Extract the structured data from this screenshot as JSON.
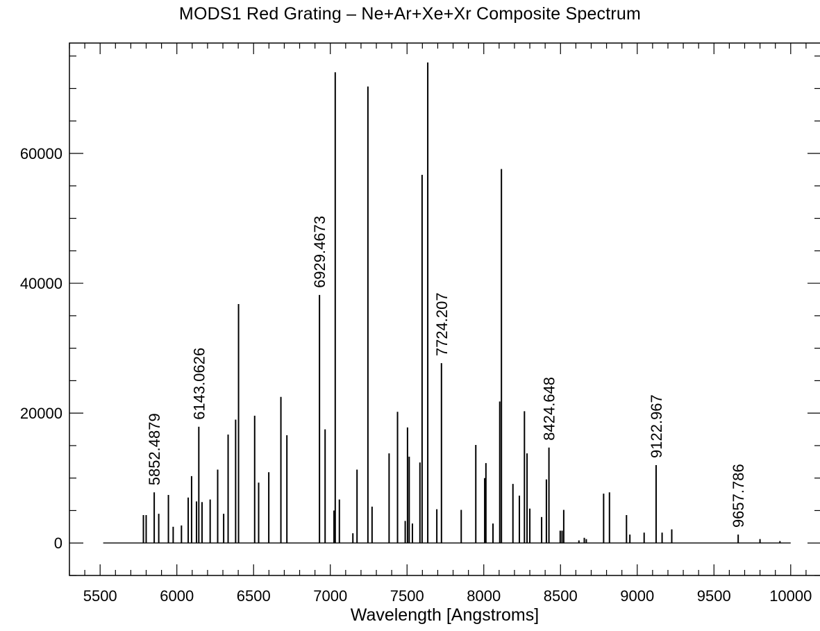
{
  "chart_data": {
    "type": "line",
    "title": "MODS1 Red Grating – Ne+Ar+Xe+Xr Composite Spectrum",
    "xlabel": "Wavelength [Angstroms]",
    "ylabel": "",
    "xlim": [
      5300,
      10200
    ],
    "ylim": [
      -5000,
      77000
    ],
    "grid": false,
    "x_ticks": [
      5500,
      6000,
      6500,
      7000,
      7500,
      8000,
      8500,
      9000,
      9500,
      10000
    ],
    "x_tick_labels": [
      "5500",
      "6000",
      "6500",
      "7000",
      "7500",
      "8000",
      "8500",
      "9000",
      "9500",
      "10000"
    ],
    "x_minor_step": 100,
    "y_ticks": [
      0,
      20000,
      40000,
      60000
    ],
    "y_tick_labels": [
      "0",
      "20000",
      "40000",
      "60000"
    ],
    "y_minor_step": 5000,
    "spectrum_range": [
      5520,
      10000
    ],
    "series": [
      {
        "x": [
          5782,
          5800,
          5852.4879,
          5882,
          5945,
          5976,
          6030,
          6074,
          6096,
          6128,
          6143.0626,
          6164,
          6217,
          6266,
          6305,
          6334,
          6383,
          6402,
          6507,
          6533,
          6599,
          6678,
          6717,
          6929.4673,
          6966,
          7024,
          7032,
          7059,
          7147,
          7174,
          7245,
          7272,
          7383,
          7438,
          7488,
          7503,
          7514,
          7535,
          7584,
          7598,
          7635,
          7694,
          7724.207,
          7853,
          7948,
          8006,
          8014,
          8060,
          8104,
          8115,
          8190,
          8232,
          8265,
          8282,
          8300,
          8377,
          8408,
          8424.648,
          8498,
          8510,
          8521,
          8620,
          8655,
          8668,
          8781,
          8819,
          8930,
          8952,
          9045,
          9122.967,
          9162,
          9225,
          9657.786,
          9800,
          9930
        ],
        "values": [
          4300,
          4300,
          7800,
          4500,
          7400,
          2500,
          2700,
          7000,
          10300,
          6400,
          17900,
          6300,
          6700,
          11300,
          4500,
          16700,
          19000,
          36800,
          19600,
          9300,
          10900,
          22500,
          16600,
          38200,
          17500,
          5000,
          72500,
          6700,
          1500,
          11300,
          70300,
          5600,
          13800,
          20200,
          3400,
          17800,
          13300,
          3000,
          12400,
          56700,
          74000,
          5200,
          27700,
          5100,
          15100,
          10000,
          12300,
          3000,
          21800,
          57600,
          9100,
          7300,
          20300,
          13800,
          5300,
          4000,
          9800,
          14700,
          1900,
          1900,
          5100,
          400,
          800,
          600,
          7600,
          7800,
          4300,
          1300,
          1600,
          12000,
          1600,
          2100,
          1300,
          600,
          300
        ]
      }
    ],
    "peak_labels": [
      {
        "text": "5852.4879",
        "x": 5852.4879
      },
      {
        "text": "6143.0626",
        "x": 6143.0626
      },
      {
        "text": "6929.4673",
        "x": 6929.4673
      },
      {
        "text": "7724.207",
        "x": 7724.207
      },
      {
        "text": "8424.648",
        "x": 8424.648
      },
      {
        "text": "9122.967",
        "x": 9122.967
      },
      {
        "text": "9657.786",
        "x": 9657.786
      }
    ]
  }
}
